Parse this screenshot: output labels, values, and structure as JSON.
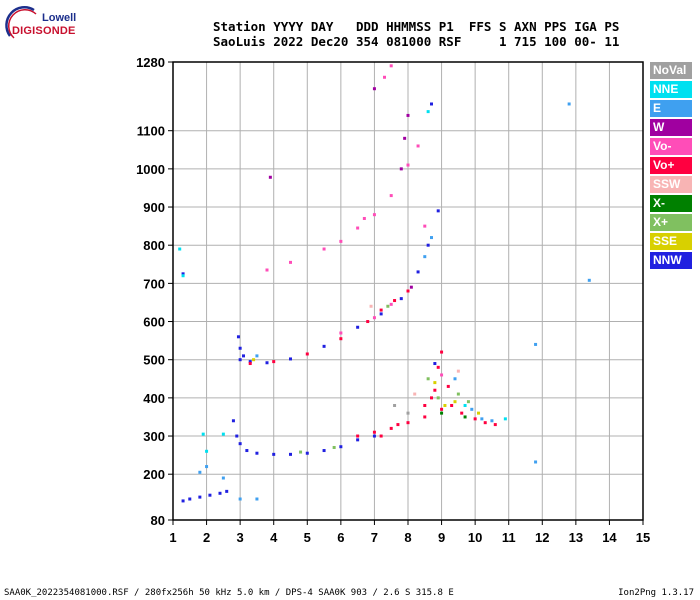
{
  "logo": {
    "line1": "Lowell",
    "line2": "DIGISONDE"
  },
  "header": {
    "line1": "Station YYYY DAY   DDD HHMMSS P1  FFS S AXN PPS IGA PS",
    "line2": "SaoLuis 2022 Dec20 354 081000 RSF     1 715 100 00- 11"
  },
  "legend": [
    {
      "label": "NoVal",
      "color": "#a0a0a0"
    },
    {
      "label": "NNE",
      "color": "#00e0f0"
    },
    {
      "label": "E",
      "color": "#3fa0f0"
    },
    {
      "label": "W",
      "color": "#a000a0"
    },
    {
      "label": "Vo-",
      "color": "#ff4db8"
    },
    {
      "label": "Vo+",
      "color": "#ff0040"
    },
    {
      "label": "SSW",
      "color": "#f8b4b4"
    },
    {
      "label": "X-",
      "color": "#008000"
    },
    {
      "label": "X+",
      "color": "#80c060"
    },
    {
      "label": "SSE",
      "color": "#d8d000"
    },
    {
      "label": "NNW",
      "color": "#2020e0"
    }
  ],
  "footer": {
    "left": "SAA0K_2022354081000.RSF / 280fx256h 50 kHz 5.0 km / DPS-4 SAA0K 903 / 2.6 S 315.8 E",
    "right": "Ion2Png 1.3.17"
  },
  "chart_data": {
    "type": "scatter",
    "title": "",
    "xlabel": "",
    "ylabel": "",
    "xlim": [
      1,
      15
    ],
    "ylim": [
      80,
      1280
    ],
    "x_ticks": [
      1,
      2,
      3,
      4,
      5,
      6,
      7,
      8,
      9,
      10,
      11,
      12,
      13,
      14,
      15
    ],
    "y_ticks": [
      80,
      200,
      300,
      400,
      500,
      600,
      700,
      800,
      900,
      1000,
      1100,
      1280
    ],
    "grid": true,
    "legend_position": "right",
    "series": [
      {
        "name": "NNW",
        "color": "#2020e0",
        "points": [
          [
            1.3,
            130
          ],
          [
            1.5,
            135
          ],
          [
            1.8,
            140
          ],
          [
            2.1,
            145
          ],
          [
            2.4,
            150
          ],
          [
            2.6,
            155
          ],
          [
            2.8,
            340
          ],
          [
            2.9,
            300
          ],
          [
            3.0,
            280
          ],
          [
            3.2,
            262
          ],
          [
            3.5,
            255
          ],
          [
            4.0,
            252
          ],
          [
            4.5,
            252
          ],
          [
            5.0,
            255
          ],
          [
            5.5,
            262
          ],
          [
            6.0,
            272
          ],
          [
            6.5,
            290
          ],
          [
            7.0,
            300
          ],
          [
            2.95,
            560
          ],
          [
            3.0,
            530
          ],
          [
            3.1,
            510
          ],
          [
            3.3,
            495
          ],
          [
            3.8,
            492
          ],
          [
            4.5,
            502
          ],
          [
            5.5,
            535
          ],
          [
            6.5,
            585
          ],
          [
            7.2,
            620
          ],
          [
            7.8,
            660
          ],
          [
            8.3,
            730
          ],
          [
            8.6,
            800
          ],
          [
            8.7,
            1170
          ],
          [
            8.9,
            890
          ],
          [
            8.8,
            490
          ],
          [
            1.3,
            725
          ],
          [
            3.0,
            500
          ]
        ]
      },
      {
        "name": "Vo+",
        "color": "#ff0040",
        "points": [
          [
            6.5,
            300
          ],
          [
            7.0,
            310
          ],
          [
            7.5,
            320
          ],
          [
            8.0,
            335
          ],
          [
            8.5,
            350
          ],
          [
            9.0,
            370
          ],
          [
            9.3,
            380
          ],
          [
            9.6,
            360
          ],
          [
            10.0,
            345
          ],
          [
            10.3,
            335
          ],
          [
            10.6,
            330
          ],
          [
            8.8,
            420
          ],
          [
            8.9,
            480
          ],
          [
            9.0,
            520
          ],
          [
            8.7,
            400
          ],
          [
            8.5,
            380
          ],
          [
            9.2,
            430
          ],
          [
            7.2,
            300
          ],
          [
            7.7,
            330
          ],
          [
            6.8,
            600
          ],
          [
            7.2,
            630
          ],
          [
            7.6,
            655
          ],
          [
            8.0,
            680
          ],
          [
            3.3,
            490
          ],
          [
            4.0,
            495
          ],
          [
            5.0,
            515
          ],
          [
            6.0,
            555
          ]
        ]
      },
      {
        "name": "Vo-",
        "color": "#ff4db8",
        "points": [
          [
            3.8,
            735
          ],
          [
            4.5,
            755
          ],
          [
            5.5,
            790
          ],
          [
            6.0,
            810
          ],
          [
            6.5,
            845
          ],
          [
            7.0,
            880
          ],
          [
            7.5,
            930
          ],
          [
            8.0,
            1010
          ],
          [
            8.3,
            1060
          ],
          [
            7.3,
            1240
          ],
          [
            7.5,
            1270
          ],
          [
            6.7,
            870
          ],
          [
            6.0,
            570
          ],
          [
            7.0,
            610
          ],
          [
            7.5,
            645
          ],
          [
            8.5,
            850
          ],
          [
            9.0,
            460
          ]
        ]
      },
      {
        "name": "E",
        "color": "#3fa0f0",
        "points": [
          [
            1.8,
            205
          ],
          [
            2.0,
            220
          ],
          [
            2.5,
            190
          ],
          [
            3.0,
            135
          ],
          [
            3.5,
            135
          ],
          [
            10.2,
            345
          ],
          [
            10.5,
            340
          ],
          [
            11.8,
            540
          ],
          [
            12.8,
            1170
          ],
          [
            11.8,
            232
          ],
          [
            13.4,
            708
          ],
          [
            9.4,
            450
          ],
          [
            9.9,
            370
          ],
          [
            8.5,
            770
          ],
          [
            8.7,
            820
          ],
          [
            3.5,
            510
          ]
        ]
      },
      {
        "name": "NNE",
        "color": "#00e0f0",
        "points": [
          [
            1.9,
            305
          ],
          [
            2.5,
            305
          ],
          [
            10.9,
            345
          ],
          [
            1.3,
            720
          ],
          [
            1.2,
            790
          ],
          [
            2.0,
            260
          ],
          [
            8.6,
            1150
          ],
          [
            9.7,
            380
          ]
        ]
      },
      {
        "name": "X+",
        "color": "#80c060",
        "points": [
          [
            5.8,
            270
          ],
          [
            8.9,
            400
          ],
          [
            9.5,
            410
          ],
          [
            9.8,
            390
          ],
          [
            8.6,
            450
          ],
          [
            4.8,
            258
          ],
          [
            7.4,
            640
          ]
        ]
      },
      {
        "name": "SSE",
        "color": "#d8d000",
        "points": [
          [
            9.1,
            380
          ],
          [
            9.4,
            390
          ],
          [
            3.4,
            500
          ],
          [
            8.8,
            440
          ],
          [
            10.1,
            360
          ]
        ]
      },
      {
        "name": "W",
        "color": "#a000a0",
        "points": [
          [
            3.9,
            978
          ],
          [
            7.8,
            1000
          ],
          [
            7.9,
            1080
          ],
          [
            8.1,
            690
          ],
          [
            7.0,
            1210
          ],
          [
            8.0,
            1140
          ]
        ]
      },
      {
        "name": "X-",
        "color": "#008000",
        "points": [
          [
            9.0,
            360
          ],
          [
            9.7,
            350
          ]
        ]
      },
      {
        "name": "SSW",
        "color": "#f8b4b4",
        "points": [
          [
            8.2,
            410
          ],
          [
            9.5,
            470
          ],
          [
            6.9,
            640
          ]
        ]
      },
      {
        "name": "NoVal",
        "color": "#a0a0a0",
        "points": [
          [
            8.0,
            360
          ],
          [
            7.6,
            380
          ]
        ]
      }
    ]
  }
}
